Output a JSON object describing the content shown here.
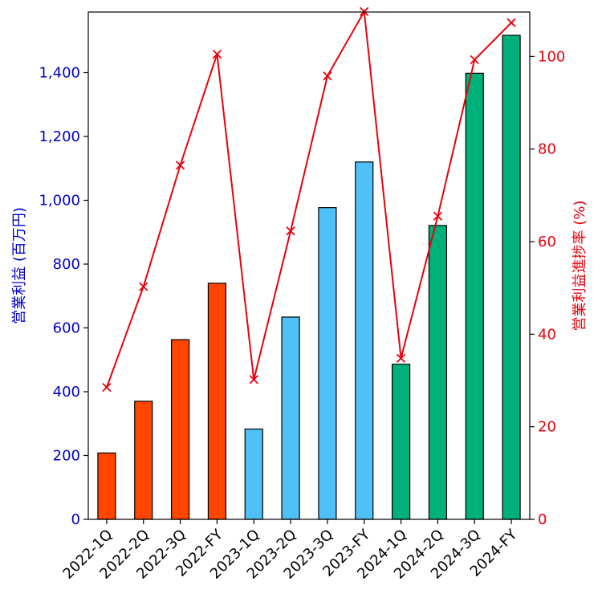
{
  "chart_data": {
    "type": "bar",
    "categories": [
      "2022-1Q",
      "2022-2Q",
      "2022-3Q",
      "2022-FY",
      "2023-1Q",
      "2023-2Q",
      "2023-3Q",
      "2023-FY",
      "2024-1Q",
      "2024-2Q",
      "2024-3Q",
      "2024-FY"
    ],
    "series": [
      {
        "name": "営業利益",
        "type": "bar",
        "axis": "left",
        "values": [
          208,
          370,
          563,
          740,
          283,
          634,
          977,
          1120,
          486,
          921,
          1398,
          1517
        ],
        "colors": [
          "#ff4500",
          "#ff4500",
          "#ff4500",
          "#ff4500",
          "#4fc1f7",
          "#4fc1f7",
          "#4fc1f7",
          "#4fc1f7",
          "#00b07a",
          "#00b07a",
          "#00b07a",
          "#00b07a"
        ]
      },
      {
        "name": "営業利益進捗率",
        "type": "line",
        "axis": "right",
        "marker": "x",
        "color": "#e8000b",
        "values": [
          28.5,
          50.3,
          76.5,
          100.5,
          30.2,
          62.3,
          95.8,
          109.7,
          34.8,
          65.5,
          99.3,
          107.3
        ]
      }
    ],
    "ylabel_left": "営業利益 (百万円)",
    "ylabel_right": "営業利益進捗率 (%)",
    "xlabel": "",
    "ylim_left": [
      0,
      1590
    ],
    "ylim_right": [
      0,
      109.6
    ],
    "yticks_left": [
      0,
      200,
      400,
      600,
      800,
      1000,
      1200,
      1400
    ],
    "ytick_labels_left": [
      "0",
      "200",
      "400",
      "600",
      "800",
      "1,000",
      "1,200",
      "1,400"
    ],
    "yticks_right": [
      0,
      20,
      40,
      60,
      80,
      100
    ],
    "ytick_labels_right": [
      "0",
      "20",
      "40",
      "60",
      "80",
      "100"
    ],
    "grid": false,
    "legend": "none"
  }
}
